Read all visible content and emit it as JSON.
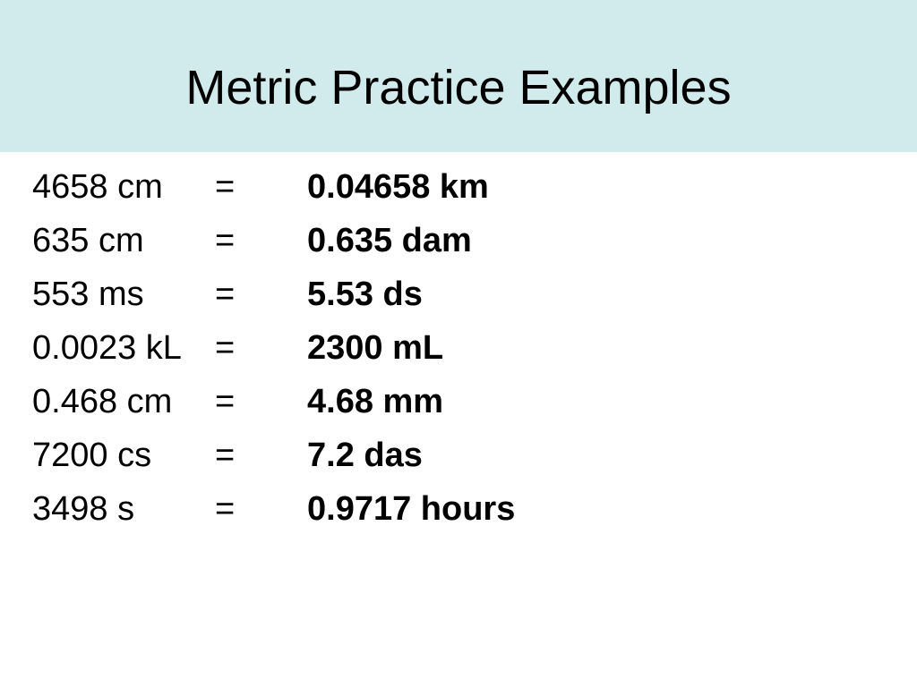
{
  "header": {
    "title": "Metric Practice Examples"
  },
  "table": {
    "rows": [
      [
        "4658 cm",
        "=",
        "0.04658 km"
      ],
      [
        "635 cm",
        "=",
        "0.635 dam"
      ],
      [
        "553 ms",
        "=",
        "5.53 ds"
      ],
      [
        "0.0023 kL",
        "=",
        "2300 mL"
      ],
      [
        "0.468 cm",
        "=",
        "4.68 mm"
      ],
      [
        "7200 cs",
        "=",
        "7.2 das"
      ],
      [
        "3498 s",
        "=",
        "0.9717 hours"
      ]
    ]
  }
}
